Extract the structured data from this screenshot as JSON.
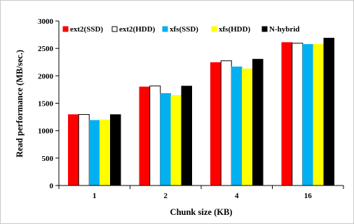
{
  "chart_data": {
    "type": "bar",
    "categories": [
      "1",
      "2",
      "4",
      "16"
    ],
    "xlabel": "Chunk size (KB)",
    "ylabel": "Read performance (MB/sec.)",
    "ylim": [
      0,
      3000
    ],
    "yticks": [
      "0",
      "500",
      "1000",
      "1500",
      "2000",
      "2500",
      "3000"
    ],
    "grid": false,
    "legend_position": "top-left, inside plot",
    "series": [
      {
        "name": "ext2(SSD)",
        "color": "#ff0000",
        "values": [
          1295,
          1800,
          2245,
          2610
        ]
      },
      {
        "name": "ext2(HDD)",
        "color": "#ffffff",
        "values": [
          1295,
          1815,
          2275,
          2595
        ]
      },
      {
        "name": "xfs(SSD)",
        "color": "#00b0f0",
        "values": [
          1190,
          1680,
          2165,
          2575
        ]
      },
      {
        "name": "xfs(HDD)",
        "color": "#ffff00",
        "values": [
          1200,
          1645,
          2130,
          2575
        ]
      },
      {
        "name": "N-hybrid",
        "color": "#000000",
        "values": [
          1295,
          1815,
          2305,
          2690
        ]
      }
    ]
  }
}
